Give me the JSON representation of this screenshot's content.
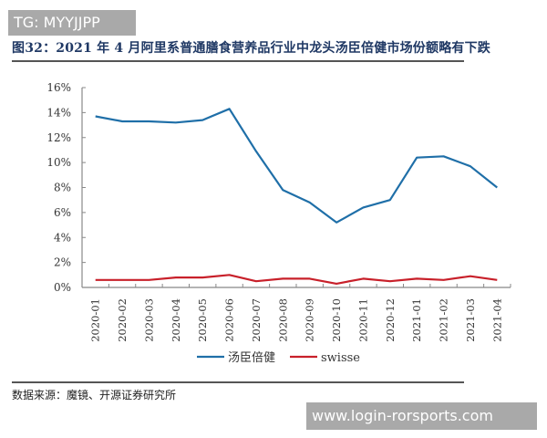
{
  "watermarks": {
    "top": "TG: MYYJJPP",
    "bottom": "www.login-rorsports.com"
  },
  "figure": {
    "title": "图32：2021 年 4 月阿里系普通膳食营养品行业中龙头汤臣倍健市场份额略有下跌",
    "source": "数据来源：魔镜、开源证券研究所"
  },
  "colors": {
    "series_1": "#1f6fa8",
    "series_2": "#c8202a",
    "axis": "#888888",
    "title": "#1f3864"
  },
  "chart_data": {
    "type": "line",
    "title": "2021 年 4 月阿里系普通膳食营养品行业中龙头汤臣倍健市场份额略有下跌",
    "xlabel": "",
    "ylabel": "",
    "categories": [
      "2020-01",
      "2020-02",
      "2020-03",
      "2020-04",
      "2020-05",
      "2020-06",
      "2020-07",
      "2020-08",
      "2020-09",
      "2020-10",
      "2020-11",
      "2020-12",
      "2021-01",
      "2021-02",
      "2021-03",
      "2021-04"
    ],
    "series": [
      {
        "name": "汤臣倍健",
        "color": "#1f6fa8",
        "values": [
          13.7,
          13.3,
          13.3,
          13.2,
          13.4,
          14.3,
          10.9,
          7.8,
          6.8,
          5.2,
          6.4,
          7.0,
          10.4,
          10.5,
          9.7,
          8.0
        ]
      },
      {
        "name": "swisse",
        "color": "#c8202a",
        "values": [
          0.6,
          0.6,
          0.6,
          0.8,
          0.8,
          1.0,
          0.5,
          0.7,
          0.7,
          0.3,
          0.7,
          0.5,
          0.7,
          0.6,
          0.9,
          0.6
        ]
      }
    ],
    "ylim": [
      0,
      16
    ],
    "yticks": [
      "0%",
      "2%",
      "4%",
      "6%",
      "8%",
      "10%",
      "12%",
      "14%",
      "16%"
    ],
    "ytick_values": [
      0,
      2,
      4,
      6,
      8,
      10,
      12,
      14,
      16
    ],
    "y_unit": "%",
    "grid": false,
    "legend_position": "bottom"
  }
}
